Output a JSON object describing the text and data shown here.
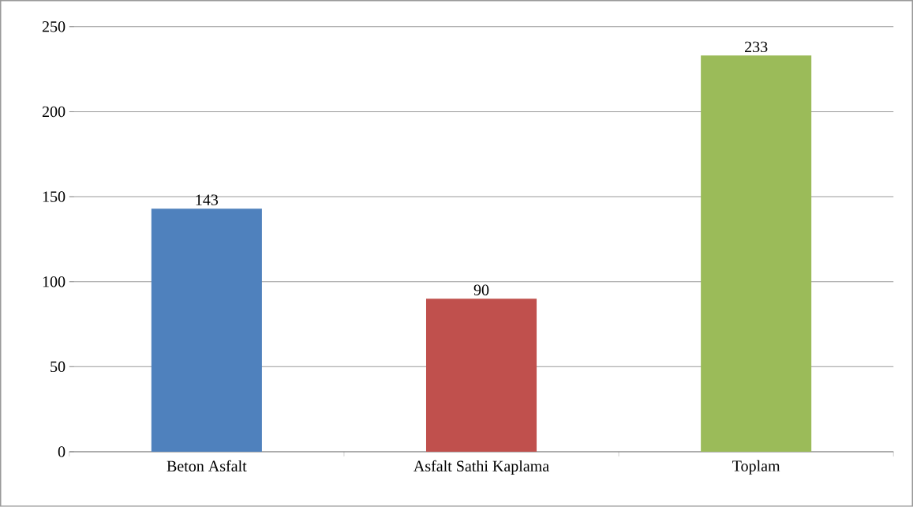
{
  "chart_data": {
    "type": "bar",
    "categories": [
      "Beton Asfalt",
      "Asfalt Sathi Kaplama",
      "Toplam"
    ],
    "values": [
      143,
      90,
      233
    ],
    "colors": [
      "#4f81bd",
      "#c0504d",
      "#9bbb59"
    ],
    "ylim": [
      0,
      250
    ],
    "yticks": [
      0,
      50,
      100,
      150,
      200,
      250
    ],
    "grid": "y",
    "data_labels": true
  }
}
